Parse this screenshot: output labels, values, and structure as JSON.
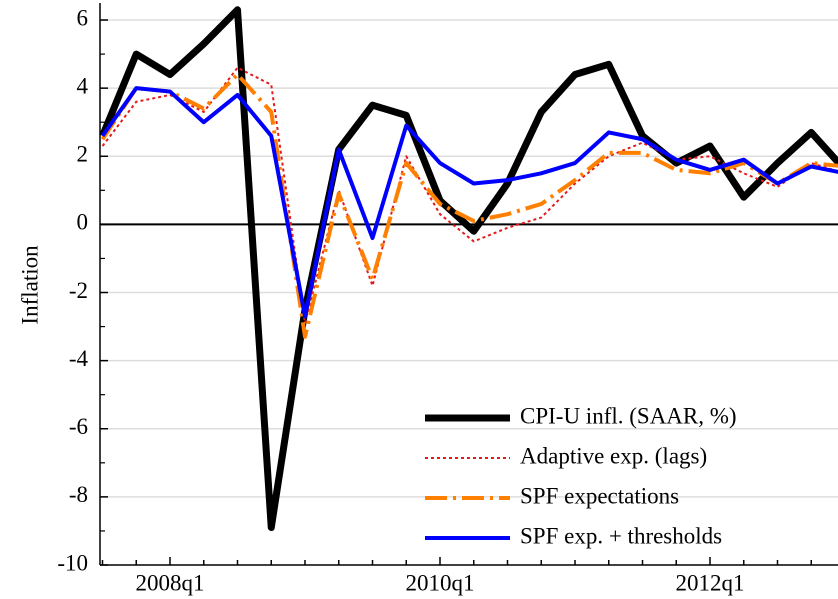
{
  "chart_data": {
    "type": "line",
    "y_label": "Inflation",
    "categories": [
      null,
      null,
      "2008q1",
      null,
      null,
      null,
      null,
      null,
      null,
      null,
      "2010q1",
      null,
      null,
      null,
      null,
      null,
      null,
      null,
      "2012q1",
      null,
      null,
      null,
      null
    ],
    "series": [
      {
        "name": "CPI-U infl. (SAAR, %)",
        "color": "#000000",
        "linestyle": "solid",
        "linewidth": 7,
        "values": [
          2.6,
          5.0,
          4.4,
          5.3,
          6.3,
          -8.9,
          -2.5,
          2.2,
          3.5,
          3.2,
          0.7,
          -0.2,
          1.2,
          3.3,
          4.4,
          4.7,
          2.6,
          1.8,
          2.3,
          0.8,
          1.8,
          2.7,
          1.6
        ]
      },
      {
        "name": "Adaptive exp. (lags)",
        "color": "#e41a1c",
        "linestyle": "dotted",
        "linewidth": 2,
        "values": [
          2.3,
          3.6,
          3.8,
          3.3,
          4.6,
          4.1,
          -2.9,
          1.0,
          -1.8,
          2.0,
          0.3,
          -0.5,
          -0.1,
          0.2,
          1.2,
          2.0,
          2.4,
          1.9,
          2.0,
          1.5,
          1.1,
          1.8,
          1.5
        ]
      },
      {
        "name": "SPF expectations",
        "color": "#ff7f00",
        "linestyle": "dashdot",
        "linewidth": 4,
        "values": [
          2.5,
          4.0,
          3.9,
          3.4,
          4.4,
          3.3,
          -3.3,
          0.9,
          -1.6,
          1.8,
          0.6,
          0.1,
          0.3,
          0.6,
          1.3,
          2.1,
          2.1,
          1.6,
          1.5,
          1.8,
          1.2,
          1.8,
          1.7
        ]
      },
      {
        "name": "SPF exp. + thresholds",
        "color": "#0000ff",
        "linestyle": "solid",
        "linewidth": 4,
        "values": [
          2.6,
          4.0,
          3.9,
          3.0,
          3.8,
          2.6,
          -2.7,
          2.2,
          -0.4,
          2.9,
          1.8,
          1.2,
          1.3,
          1.5,
          1.8,
          2.7,
          2.5,
          1.9,
          1.6,
          1.9,
          1.2,
          1.7,
          1.5
        ]
      }
    ],
    "ylim": [
      -10,
      6.5
    ],
    "yticks": [
      -10,
      -8,
      -6,
      -4,
      -2,
      0,
      2,
      4,
      6
    ],
    "grid": true,
    "zero_line": true,
    "legend": "lower right"
  }
}
